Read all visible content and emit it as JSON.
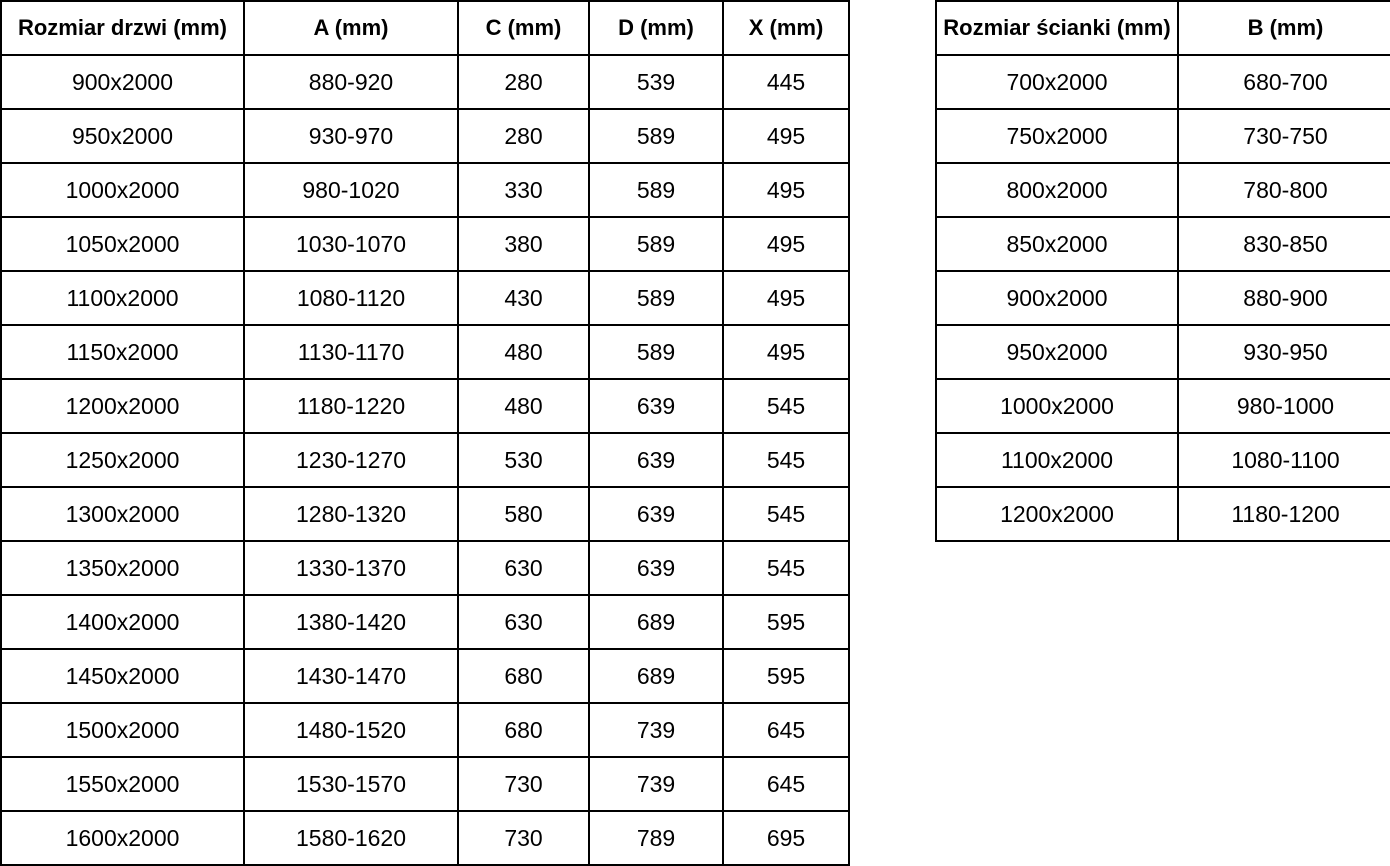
{
  "door_table": {
    "headers": [
      "Rozmiar drzwi (mm)",
      "A (mm)",
      "C (mm)",
      "D (mm)",
      "X (mm)"
    ],
    "rows": [
      [
        "900x2000",
        "880-920",
        "280",
        "539",
        "445"
      ],
      [
        "950x2000",
        "930-970",
        "280",
        "589",
        "495"
      ],
      [
        "1000x2000",
        "980-1020",
        "330",
        "589",
        "495"
      ],
      [
        "1050x2000",
        "1030-1070",
        "380",
        "589",
        "495"
      ],
      [
        "1100x2000",
        "1080-1120",
        "430",
        "589",
        "495"
      ],
      [
        "1150x2000",
        "1130-1170",
        "480",
        "589",
        "495"
      ],
      [
        "1200x2000",
        "1180-1220",
        "480",
        "639",
        "545"
      ],
      [
        "1250x2000",
        "1230-1270",
        "530",
        "639",
        "545"
      ],
      [
        "1300x2000",
        "1280-1320",
        "580",
        "639",
        "545"
      ],
      [
        "1350x2000",
        "1330-1370",
        "630",
        "639",
        "545"
      ],
      [
        "1400x2000",
        "1380-1420",
        "630",
        "689",
        "595"
      ],
      [
        "1450x2000",
        "1430-1470",
        "680",
        "689",
        "595"
      ],
      [
        "1500x2000",
        "1480-1520",
        "680",
        "739",
        "645"
      ],
      [
        "1550x2000",
        "1530-1570",
        "730",
        "739",
        "645"
      ],
      [
        "1600x2000",
        "1580-1620",
        "730",
        "789",
        "695"
      ]
    ]
  },
  "wall_table": {
    "headers": [
      "Rozmiar ścianki (mm)",
      "B (mm)"
    ],
    "rows": [
      [
        "700x2000",
        "680-700"
      ],
      [
        "750x2000",
        "730-750"
      ],
      [
        "800x2000",
        "780-800"
      ],
      [
        "850x2000",
        "830-850"
      ],
      [
        "900x2000",
        "880-900"
      ],
      [
        "950x2000",
        "930-950"
      ],
      [
        "1000x2000",
        "980-1000"
      ],
      [
        "1100x2000",
        "1080-1100"
      ],
      [
        "1200x2000",
        "1180-1200"
      ]
    ]
  },
  "colors": {
    "border": "#000000",
    "text": "#000000",
    "background": "#ffffff"
  }
}
